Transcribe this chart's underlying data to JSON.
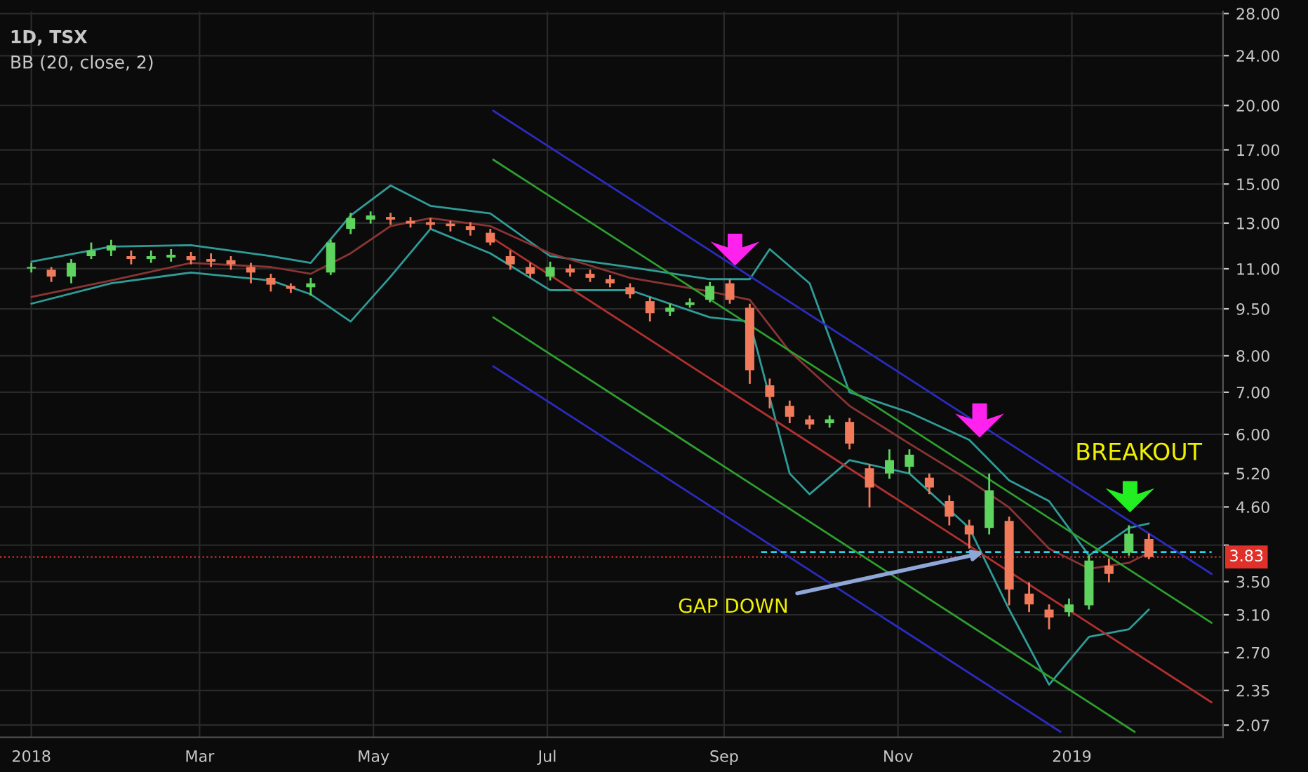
{
  "chart_data": {
    "type": "candlestick",
    "title": "1D, TSX",
    "log": "y",
    "grid": true,
    "annotations": [
      "BB (20, close, 2)",
      "BREAKOUT",
      {
        "text": "GAP DOWN",
        "x": "2018-12-01",
        "y": 3.89
      }
    ],
    "x": [
      "2018-01-01",
      "2018-01-08",
      "2018-01-15",
      "2018-01-22",
      "2018-01-29",
      "2018-02-05",
      "2018-02-12",
      "2018-02-19",
      "2018-02-26",
      "2018-03-05",
      "2018-03-12",
      "2018-03-19",
      "2018-03-26",
      "2018-04-02",
      "2018-04-09",
      "2018-04-16",
      "2018-04-23",
      "2018-04-30",
      "2018-05-07",
      "2018-05-14",
      "2018-05-21",
      "2018-05-28",
      "2018-06-04",
      "2018-06-11",
      "2018-06-18",
      "2018-06-25",
      "2018-07-02",
      "2018-07-09",
      "2018-07-16",
      "2018-07-23",
      "2018-07-30",
      "2018-08-06",
      "2018-08-13",
      "2018-08-20",
      "2018-08-27",
      "2018-09-03",
      "2018-09-10",
      "2018-09-17",
      "2018-09-24",
      "2018-10-01",
      "2018-10-08",
      "2018-10-15",
      "2018-10-22",
      "2018-10-29",
      "2018-11-05",
      "2018-11-12",
      "2018-11-19",
      "2018-11-26",
      "2018-12-03",
      "2018-12-10",
      "2018-12-17",
      "2018-12-24",
      "2018-12-31",
      "2019-01-07",
      "2019-01-14",
      "2019-01-21",
      "2019-01-28"
    ],
    "ohlc": [
      [
        11.01,
        11.24,
        10.85,
        11.07
      ],
      [
        10.96,
        11.07,
        10.48,
        10.69
      ],
      [
        10.69,
        11.4,
        10.43,
        11.24
      ],
      [
        11.52,
        12.11,
        11.4,
        11.76
      ],
      [
        11.76,
        12.23,
        11.52,
        11.99
      ],
      [
        11.52,
        11.76,
        11.18,
        11.4
      ],
      [
        11.4,
        11.76,
        11.24,
        11.52
      ],
      [
        11.46,
        11.82,
        11.29,
        11.58
      ],
      [
        11.52,
        11.7,
        11.18,
        11.35
      ],
      [
        11.4,
        11.64,
        11.07,
        11.29
      ],
      [
        11.35,
        11.52,
        10.96,
        11.18
      ],
      [
        11.07,
        11.24,
        10.43,
        10.85
      ],
      [
        10.64,
        10.8,
        10.12,
        10.38
      ],
      [
        10.33,
        10.43,
        10.07,
        10.22
      ],
      [
        10.28,
        10.64,
        9.97,
        10.43
      ],
      [
        10.85,
        12.23,
        10.75,
        12.11
      ],
      [
        12.73,
        13.5,
        12.49,
        13.24
      ],
      [
        13.17,
        13.57,
        12.98,
        13.37
      ],
      [
        13.3,
        13.5,
        12.92,
        13.17
      ],
      [
        13.11,
        13.3,
        12.79,
        12.98
      ],
      [
        13.05,
        13.24,
        12.73,
        12.92
      ],
      [
        12.98,
        13.11,
        12.61,
        12.86
      ],
      [
        12.86,
        13.05,
        12.42,
        12.67
      ],
      [
        12.55,
        12.73,
        11.99,
        12.11
      ],
      [
        11.52,
        11.76,
        10.96,
        11.18
      ],
      [
        11.07,
        11.24,
        10.64,
        10.8
      ],
      [
        10.69,
        11.29,
        10.54,
        11.07
      ],
      [
        11.01,
        11.18,
        10.69,
        10.85
      ],
      [
        10.8,
        10.96,
        10.48,
        10.64
      ],
      [
        10.59,
        10.75,
        10.28,
        10.43
      ],
      [
        10.28,
        10.43,
        9.87,
        10.02
      ],
      [
        9.77,
        9.92,
        9.07,
        9.35
      ],
      [
        9.4,
        9.68,
        9.26,
        9.54
      ],
      [
        9.63,
        9.87,
        9.54,
        9.73
      ],
      [
        9.82,
        10.48,
        9.73,
        10.33
      ],
      [
        10.43,
        10.59,
        9.68,
        9.82
      ],
      [
        9.54,
        9.68,
        7.22,
        7.59
      ],
      [
        7.18,
        7.36,
        6.6,
        6.88
      ],
      [
        6.66,
        6.79,
        6.25,
        6.4
      ],
      [
        6.34,
        6.43,
        6.12,
        6.22
      ],
      [
        6.25,
        6.43,
        6.15,
        6.34
      ],
      [
        6.28,
        6.37,
        5.68,
        5.8
      ],
      [
        5.3,
        5.38,
        4.59,
        4.94
      ],
      [
        5.2,
        5.68,
        5.1,
        5.46
      ],
      [
        5.33,
        5.68,
        5.2,
        5.57
      ],
      [
        5.12,
        5.2,
        4.82,
        4.94
      ],
      [
        4.7,
        4.8,
        4.3,
        4.44
      ],
      [
        4.3,
        4.39,
        3.95,
        4.16
      ],
      [
        4.26,
        5.2,
        4.16,
        4.89
      ],
      [
        4.37,
        4.44,
        3.21,
        3.4
      ],
      [
        3.35,
        3.49,
        3.13,
        3.22
      ],
      [
        3.16,
        3.22,
        2.94,
        3.07
      ],
      [
        3.13,
        3.29,
        3.08,
        3.22
      ],
      [
        3.21,
        3.85,
        3.16,
        3.78
      ],
      [
        3.71,
        3.81,
        3.49,
        3.6
      ],
      [
        3.89,
        4.3,
        3.85,
        4.17
      ],
      [
        4.09,
        4.17,
        3.8,
        3.83
      ]
    ],
    "series": [
      {
        "type": "line",
        "color": "#2f9c98",
        "x": [
          "2018-01-01",
          "2018-01-29",
          "2018-02-26",
          "2018-03-26",
          "2018-04-09",
          "2018-04-23",
          "2018-05-07",
          "2018-05-21",
          "2018-06-11",
          "2018-07-02",
          "2018-07-30",
          "2018-08-27",
          "2018-09-10",
          "2018-09-17",
          "2018-10-01",
          "2018-10-15",
          "2018-11-05",
          "2018-11-26",
          "2018-12-10",
          "2018-12-24",
          "2019-01-07",
          "2019-01-21",
          "2019-01-28"
        ],
        "values": [
          11.29,
          11.93,
          11.99,
          11.52,
          11.24,
          13.37,
          14.92,
          13.85,
          13.47,
          11.52,
          11.07,
          10.59,
          10.59,
          11.82,
          10.43,
          7.0,
          6.5,
          5.88,
          5.07,
          4.7,
          3.85,
          4.26,
          4.33
        ]
      },
      {
        "type": "line",
        "color": "#8a3434",
        "x": [
          "2018-01-01",
          "2018-01-29",
          "2018-02-26",
          "2018-03-26",
          "2018-04-09",
          "2018-04-23",
          "2018-05-07",
          "2018-05-21",
          "2018-06-11",
          "2018-07-02",
          "2018-07-30",
          "2018-08-27",
          "2018-09-10",
          "2018-09-24",
          "2018-10-15",
          "2018-11-05",
          "2018-11-26",
          "2018-12-10",
          "2018-12-24",
          "2019-01-07",
          "2019-01-21",
          "2019-01-28"
        ],
        "values": [
          9.92,
          10.54,
          11.24,
          11.07,
          10.8,
          11.64,
          12.86,
          13.24,
          12.86,
          11.64,
          10.64,
          10.12,
          9.82,
          8.13,
          6.66,
          5.8,
          5.07,
          4.59,
          3.95,
          3.67,
          3.75,
          3.89
        ]
      },
      {
        "type": "line",
        "color": "#2f9c98",
        "x": [
          "2018-01-01",
          "2018-01-29",
          "2018-02-26",
          "2018-03-26",
          "2018-04-09",
          "2018-04-23",
          "2018-05-07",
          "2018-05-21",
          "2018-06-11",
          "2018-07-02",
          "2018-07-30",
          "2018-08-27",
          "2018-09-10",
          "2018-09-24",
          "2018-10-01",
          "2018-10-15",
          "2018-11-05",
          "2018-11-26",
          "2018-12-10",
          "2018-12-24",
          "2019-01-07",
          "2019-01-21",
          "2019-01-28"
        ],
        "values": [
          9.68,
          10.43,
          10.85,
          10.54,
          10.02,
          9.07,
          10.69,
          12.73,
          11.64,
          10.17,
          10.17,
          9.21,
          9.07,
          5.2,
          4.82,
          5.46,
          5.2,
          4.26,
          3.16,
          2.4,
          2.86,
          2.94,
          3.16
        ]
      },
      {
        "type": "line",
        "color": "#2b2bc0",
        "x": [
          "2018-06-12",
          "2019-02-19"
        ],
        "values": [
          19.62,
          3.6
        ]
      },
      {
        "type": "line",
        "color": "#2e9e2e",
        "x": [
          "2018-06-12",
          "2019-02-19"
        ],
        "values": [
          16.4,
          3.01
        ]
      },
      {
        "type": "line",
        "color": "#b03030",
        "x": [
          "2018-06-12",
          "2019-02-19"
        ],
        "values": [
          12.29,
          2.25
        ]
      },
      {
        "type": "line",
        "color": "#2e9e2e",
        "x": [
          "2018-06-12",
          "2019-01-23"
        ],
        "values": [
          9.21,
          2.02
        ]
      },
      {
        "type": "line",
        "color": "#2b2bc0",
        "x": [
          "2018-06-12",
          "2018-12-28"
        ],
        "values": [
          7.7,
          2.02
        ]
      },
      {
        "type": "line",
        "color": "#2ad4e8",
        "line_style": "dashed",
        "x": [
          "2018-09-14",
          "2019-02-19"
        ],
        "values": [
          3.9,
          3.9
        ]
      }
    ],
    "ref_lines": [
      {
        "axis": "y",
        "value": 3.83,
        "label": "3.83",
        "color": "#e0302a",
        "line_style": "dotted"
      }
    ],
    "xlim": [
      "2017-12-21",
      "2019-02-23"
    ],
    "xticks": [
      {
        "value": "2018-01-01",
        "label": "2018"
      },
      {
        "value": "2018-03-01",
        "label": "Mar"
      },
      {
        "value": "2018-05-01",
        "label": "May"
      },
      {
        "value": "2018-07-01",
        "label": "Jul"
      },
      {
        "value": "2018-09-01",
        "label": "Sep"
      },
      {
        "value": "2018-11-01",
        "label": "Nov"
      },
      {
        "value": "2019-01-01",
        "label": "2019"
      }
    ],
    "ylim": [
      1.98,
      28.2
    ],
    "yticks": [
      {
        "value": 2.07,
        "label": "2.07"
      },
      {
        "value": 2.35,
        "label": "2.35"
      },
      {
        "value": 2.7,
        "label": "2.70"
      },
      {
        "value": 3.1,
        "label": "3.10"
      },
      {
        "value": 3.5,
        "label": "3.50"
      },
      {
        "value": 4,
        "label": null
      },
      {
        "value": 4.6,
        "label": "4.60"
      },
      {
        "value": 5.2,
        "label": "5.20"
      },
      {
        "value": 6,
        "label": "6.00"
      },
      {
        "value": 7,
        "label": "7.00"
      },
      {
        "value": 8,
        "label": "8.00"
      },
      {
        "value": 9.5,
        "label": "9.50"
      },
      {
        "value": 11,
        "label": "11.00"
      },
      {
        "value": 13,
        "label": "13.00"
      },
      {
        "value": 15,
        "label": "15.00"
      },
      {
        "value": 17,
        "label": "17.00"
      },
      {
        "value": 20,
        "label": "20.00"
      },
      {
        "value": 24,
        "label": "24.00"
      },
      {
        "value": 28,
        "label": "28.00"
      }
    ]
  }
}
